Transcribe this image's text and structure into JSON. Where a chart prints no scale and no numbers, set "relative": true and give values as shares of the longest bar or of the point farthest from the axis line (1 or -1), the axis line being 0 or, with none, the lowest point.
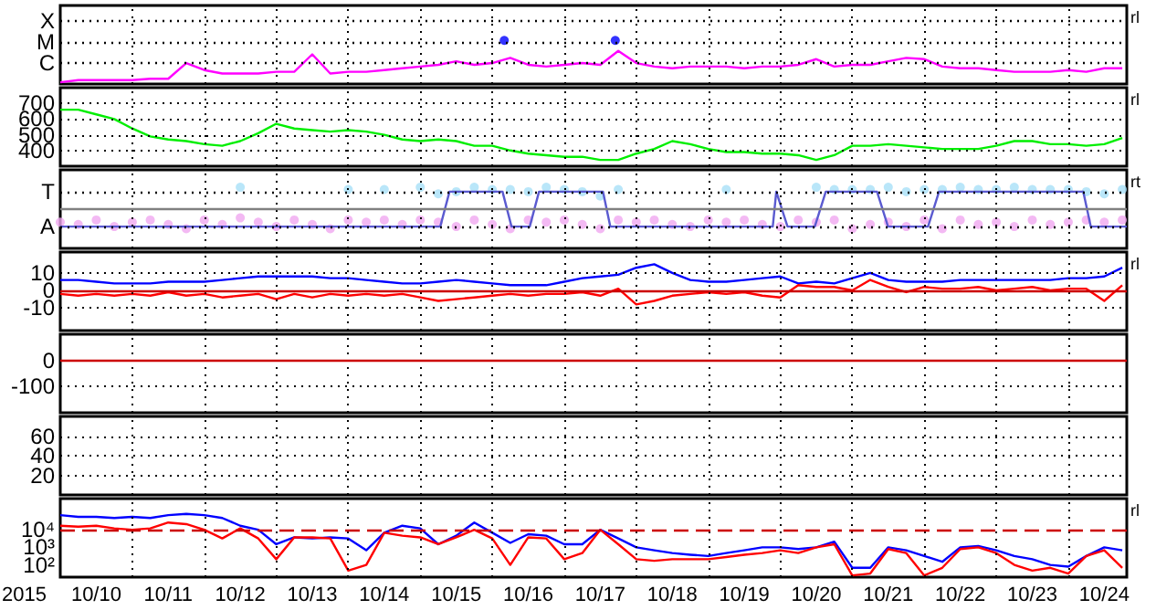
{
  "chart_data": [
    {
      "type": "line",
      "relative": true,
      "ref_lines": [
        {
          "axis": "y",
          "value": 0.48,
          "label": "C",
          "color": "#000000",
          "line_style": "dotted"
        },
        {
          "axis": "y",
          "value": 0.96,
          "label": "M",
          "color": "#000000",
          "line_style": "dotted"
        },
        {
          "axis": "y",
          "value": 1.44,
          "label": "X",
          "color": "#000000",
          "line_style": "dotted"
        }
      ],
      "xlim": [
        "2015-10-10T00:00",
        "2015-10-24T19:30"
      ],
      "xticks": [
        {
          "value": "2015-10-11",
          "label": null
        },
        {
          "value": "2015-10-12",
          "label": null
        },
        {
          "value": "2015-10-13",
          "label": null
        },
        {
          "value": "2015-10-14",
          "label": null
        },
        {
          "value": "2015-10-15",
          "label": null
        },
        {
          "value": "2015-10-16",
          "label": null
        },
        {
          "value": "2015-10-17",
          "label": null
        },
        {
          "value": "2015-10-18",
          "label": null
        },
        {
          "value": "2015-10-19",
          "label": null
        },
        {
          "value": "2015-10-20",
          "label": null
        },
        {
          "value": "2015-10-21",
          "label": null
        },
        {
          "value": "2015-10-22",
          "label": null
        },
        {
          "value": "2015-10-23",
          "label": null
        },
        {
          "value": "2015-10-24",
          "label": null
        }
      ],
      "tick_labels": "y",
      "grid": true,
      "annotations": [
        "rl"
      ],
      "x": [
        "2015-10-10T00:00",
        "2015-10-10T06:00",
        "2015-10-10T12:00",
        "2015-10-10T18:00",
        "2015-10-11T00:00",
        "2015-10-11T06:00",
        "2015-10-11T12:00",
        "2015-10-11T18:00",
        "2015-10-12T00:00",
        "2015-10-12T06:00",
        "2015-10-12T12:00",
        "2015-10-12T18:00",
        "2015-10-13T00:00",
        "2015-10-13T06:00",
        "2015-10-13T12:00",
        "2015-10-13T18:00",
        "2015-10-14T00:00",
        "2015-10-14T06:00",
        "2015-10-14T12:00",
        "2015-10-14T18:00",
        "2015-10-15T00:00",
        "2015-10-15T06:00",
        "2015-10-15T12:00",
        "2015-10-15T18:00",
        "2015-10-16T00:00",
        "2015-10-16T06:00",
        "2015-10-16T12:00",
        "2015-10-16T18:00",
        "2015-10-17T00:00",
        "2015-10-17T06:00",
        "2015-10-17T12:00",
        "2015-10-17T18:00",
        "2015-10-18T00:00",
        "2015-10-18T06:00",
        "2015-10-18T12:00",
        "2015-10-18T18:00",
        "2015-10-19T00:00",
        "2015-10-19T06:00",
        "2015-10-19T12:00",
        "2015-10-19T18:00",
        "2015-10-20T00:00",
        "2015-10-20T06:00",
        "2015-10-20T12:00",
        "2015-10-20T18:00",
        "2015-10-21T00:00",
        "2015-10-21T06:00",
        "2015-10-21T12:00",
        "2015-10-21T18:00",
        "2015-10-22T00:00",
        "2015-10-22T06:00",
        "2015-10-22T12:00",
        "2015-10-22T18:00",
        "2015-10-23T00:00",
        "2015-10-23T06:00",
        "2015-10-23T12:00",
        "2015-10-23T18:00",
        "2015-10-24T00:00",
        "2015-10-24T06:00",
        "2015-10-24T12:00",
        "2015-10-24T18:00"
      ],
      "series": [
        {
          "color": "#ff00ff",
          "values": [
            0.04,
            0.09,
            0.09,
            0.09,
            0.09,
            0.12,
            0.12,
            0.48,
            0.32,
            0.24,
            0.24,
            0.24,
            0.28,
            0.28,
            0.68,
            0.24,
            0.28,
            0.28,
            0.32,
            0.36,
            0.4,
            0.44,
            0.52,
            0.44,
            0.48,
            0.6,
            0.44,
            0.4,
            0.44,
            0.48,
            0.44,
            0.76,
            0.48,
            0.4,
            0.36,
            0.4,
            0.4,
            0.4,
            0.36,
            0.4,
            0.4,
            0.44,
            0.57,
            0.4,
            0.44,
            0.44,
            0.52,
            0.6,
            0.57,
            0.4,
            0.36,
            0.36,
            0.32,
            0.28,
            0.28,
            0.28,
            0.32,
            0.28,
            0.36,
            0.36
          ]
        },
        {
          "type": "scatter",
          "color": "#0000ff",
          "x": [
            "2015-10-16T04:00",
            "2015-10-17T17:00"
          ],
          "values": [
            1,
            1
          ]
        }
      ]
    },
    {
      "type": "line",
      "ylim": [
        300,
        800
      ],
      "yticks": [
        400,
        500,
        600,
        700
      ],
      "xlim": [
        "2015-10-10T00:00",
        "2015-10-24T19:30"
      ],
      "xticks": [
        {
          "value": "2015-10-11",
          "label": null
        },
        {
          "value": "2015-10-12",
          "label": null
        },
        {
          "value": "2015-10-13",
          "label": null
        },
        {
          "value": "2015-10-14",
          "label": null
        },
        {
          "value": "2015-10-15",
          "label": null
        },
        {
          "value": "2015-10-16",
          "label": null
        },
        {
          "value": "2015-10-17",
          "label": null
        },
        {
          "value": "2015-10-18",
          "label": null
        },
        {
          "value": "2015-10-19",
          "label": null
        },
        {
          "value": "2015-10-20",
          "label": null
        },
        {
          "value": "2015-10-21",
          "label": null
        },
        {
          "value": "2015-10-22",
          "label": null
        },
        {
          "value": "2015-10-23",
          "label": null
        },
        {
          "value": "2015-10-24",
          "label": null
        }
      ],
      "tick_labels": "y",
      "grid": true,
      "annotations": [
        "rl"
      ],
      "x": [
        "2015-10-10T00:00",
        "2015-10-10T06:00",
        "2015-10-10T12:00",
        "2015-10-10T18:00",
        "2015-10-11T00:00",
        "2015-10-11T06:00",
        "2015-10-11T12:00",
        "2015-10-11T18:00",
        "2015-10-12T00:00",
        "2015-10-12T06:00",
        "2015-10-12T12:00",
        "2015-10-12T18:00",
        "2015-10-13T00:00",
        "2015-10-13T06:00",
        "2015-10-13T12:00",
        "2015-10-13T18:00",
        "2015-10-14T00:00",
        "2015-10-14T06:00",
        "2015-10-14T12:00",
        "2015-10-14T18:00",
        "2015-10-15T00:00",
        "2015-10-15T06:00",
        "2015-10-15T12:00",
        "2015-10-15T18:00",
        "2015-10-16T00:00",
        "2015-10-16T06:00",
        "2015-10-16T12:00",
        "2015-10-16T18:00",
        "2015-10-17T00:00",
        "2015-10-17T06:00",
        "2015-10-17T12:00",
        "2015-10-17T18:00",
        "2015-10-18T00:00",
        "2015-10-18T06:00",
        "2015-10-18T12:00",
        "2015-10-18T18:00",
        "2015-10-19T00:00",
        "2015-10-19T06:00",
        "2015-10-19T12:00",
        "2015-10-19T18:00",
        "2015-10-20T00:00",
        "2015-10-20T06:00",
        "2015-10-20T12:00",
        "2015-10-20T18:00",
        "2015-10-21T00:00",
        "2015-10-21T06:00",
        "2015-10-21T12:00",
        "2015-10-21T18:00",
        "2015-10-22T00:00",
        "2015-10-22T06:00",
        "2015-10-22T12:00",
        "2015-10-22T18:00",
        "2015-10-23T00:00",
        "2015-10-23T06:00",
        "2015-10-23T12:00",
        "2015-10-23T18:00",
        "2015-10-24T00:00",
        "2015-10-24T06:00",
        "2015-10-24T12:00",
        "2015-10-24T18:00"
      ],
      "series": [
        {
          "color": "#00ee00",
          "values": [
            660,
            660,
            630,
            600,
            540,
            490,
            470,
            460,
            440,
            430,
            460,
            510,
            570,
            540,
            530,
            520,
            530,
            520,
            500,
            470,
            460,
            470,
            460,
            430,
            430,
            400,
            380,
            370,
            360,
            360,
            340,
            340,
            380,
            410,
            460,
            440,
            410,
            390,
            390,
            380,
            380,
            370,
            340,
            370,
            430,
            430,
            440,
            430,
            420,
            410,
            410,
            410,
            430,
            460,
            460,
            440,
            440,
            430,
            440,
            480
          ]
        }
      ]
    },
    {
      "type": "line",
      "relative": true,
      "xlim": [
        "2015-10-10T00:00",
        "2015-10-24T19:30"
      ],
      "xticks": [
        {
          "value": "2015-10-11",
          "label": null
        },
        {
          "value": "2015-10-12",
          "label": null
        },
        {
          "value": "2015-10-13",
          "label": null
        },
        {
          "value": "2015-10-14",
          "label": null
        },
        {
          "value": "2015-10-15",
          "label": null
        },
        {
          "value": "2015-10-16",
          "label": null
        },
        {
          "value": "2015-10-17",
          "label": null
        },
        {
          "value": "2015-10-18",
          "label": null
        },
        {
          "value": "2015-10-19",
          "label": null
        },
        {
          "value": "2015-10-20",
          "label": null
        },
        {
          "value": "2015-10-21",
          "label": null
        },
        {
          "value": "2015-10-22",
          "label": null
        },
        {
          "value": "2015-10-23",
          "label": null
        },
        {
          "value": "2015-10-24",
          "label": null
        }
      ],
      "tick_labels": "y",
      "grid": true,
      "annotations": [
        "rt"
      ],
      "ref_lines": [
        {
          "axis": "y",
          "value": 0,
          "color": "#808080"
        },
        {
          "axis": "y",
          "value": 0.8,
          "label": "T",
          "color": "#000000",
          "line_style": "dotted"
        },
        {
          "axis": "y",
          "value": -0.8,
          "label": "A",
          "color": "#000000",
          "line_style": "dotted"
        }
      ],
      "x": [
        "2015-10-10T00:00",
        "2015-10-10T06:00",
        "2015-10-10T12:00",
        "2015-10-10T18:00",
        "2015-10-11T00:00",
        "2015-10-11T06:00",
        "2015-10-11T12:00",
        "2015-10-11T18:00",
        "2015-10-12T00:00",
        "2015-10-12T06:00",
        "2015-10-12T12:00",
        "2015-10-12T18:00",
        "2015-10-13T00:00",
        "2015-10-13T06:00",
        "2015-10-13T12:00",
        "2015-10-13T18:00",
        "2015-10-14T00:00",
        "2015-10-14T06:00",
        "2015-10-14T12:00",
        "2015-10-14T18:00",
        "2015-10-15T00:00",
        "2015-10-15T06:00",
        "2015-10-15T12:00",
        "2015-10-15T18:00",
        "2015-10-16T00:00",
        "2015-10-16T06:00",
        "2015-10-16T12:00",
        "2015-10-16T18:00",
        "2015-10-17T00:00",
        "2015-10-17T06:00",
        "2015-10-17T12:00",
        "2015-10-17T18:00",
        "2015-10-18T00:00",
        "2015-10-18T06:00",
        "2015-10-18T12:00",
        "2015-10-18T18:00",
        "2015-10-19T00:00",
        "2015-10-19T06:00",
        "2015-10-19T12:00",
        "2015-10-19T18:00",
        "2015-10-20T00:00",
        "2015-10-20T06:00",
        "2015-10-20T12:00",
        "2015-10-20T18:00",
        "2015-10-21T00:00",
        "2015-10-21T06:00",
        "2015-10-21T12:00",
        "2015-10-21T18:00",
        "2015-10-22T00:00",
        "2015-10-22T06:00",
        "2015-10-22T12:00",
        "2015-10-22T18:00",
        "2015-10-23T00:00",
        "2015-10-23T06:00",
        "2015-10-23T12:00",
        "2015-10-23T18:00",
        "2015-10-24T00:00",
        "2015-10-24T06:00",
        "2015-10-24T12:00",
        "2015-10-24T18:00"
      ],
      "series": [
        {
          "type": "scatter",
          "color": "#f0a8f0",
          "values": [
            -0.6,
            -0.7,
            -0.5,
            -0.8,
            -0.6,
            -0.5,
            -0.7,
            -0.9,
            -0.5,
            -0.7,
            -0.4,
            -0.6,
            -0.8,
            -0.5,
            -0.7,
            -0.9,
            -0.5,
            -0.6,
            -0.5,
            -0.7,
            -0.5,
            -0.6,
            -0.8,
            -0.5,
            -0.7,
            -0.9,
            -0.5,
            -0.6,
            -0.5,
            -0.7,
            -0.9,
            -0.5,
            -0.6,
            -0.5,
            -0.7,
            -0.8,
            -0.5,
            -0.6,
            -0.5,
            -0.7,
            -0.8,
            -0.5,
            -0.6,
            -0.5,
            -0.9,
            -0.7,
            -0.6,
            -0.8,
            -0.5,
            -0.9,
            -0.5,
            -0.7,
            -0.6,
            -0.8,
            -0.5,
            -0.7,
            -0.6,
            -0.5,
            -0.6,
            -0.5
          ]
        },
        {
          "type": "scatter",
          "color": "#a8e0f8",
          "values": [
            null,
            null,
            null,
            null,
            null,
            null,
            null,
            null,
            null,
            null,
            1,
            null,
            null,
            null,
            null,
            null,
            0.9,
            null,
            0.9,
            null,
            1,
            0.7,
            0.8,
            1,
            0.9,
            0.9,
            0.8,
            1,
            0.9,
            0.8,
            0.6,
            0.9,
            null,
            null,
            null,
            null,
            null,
            0.9,
            null,
            null,
            null,
            null,
            1,
            0.9,
            0.9,
            0.9,
            1,
            0.8,
            0.9,
            0.9,
            1,
            0.9,
            0.9,
            1,
            0.9,
            0.9,
            0.9,
            0.8,
            0.7,
            0.9
          ]
        },
        {
          "color": "#5a5ad0",
          "x": [
            "2015-10-10T00:00",
            "2015-10-15T06:40",
            "2015-10-15T09:45",
            "2015-10-16T03:25",
            "2015-10-16T06:25",
            "2015-10-16T12:30",
            "2015-10-16T15:35",
            "2015-10-17T12:55",
            "2015-10-17T15:20",
            "2015-10-19T21:30",
            "2015-10-19T22:40",
            "2015-10-20T02:25",
            "2015-10-20T11:30",
            "2015-10-20T15:10",
            "2015-10-21T08:15",
            "2015-10-21T11:55",
            "2015-10-22T01:15",
            "2015-10-22T04:55",
            "2015-10-24T05:00",
            "2015-10-24T07:30",
            "2015-10-24T19:30"
          ],
          "values": [
            -0.8,
            -0.8,
            0.8,
            0.8,
            -0.8,
            -0.8,
            0.8,
            0.8,
            -0.8,
            -0.8,
            0.8,
            -0.8,
            -0.8,
            0.8,
            0.8,
            -0.8,
            -0.8,
            0.8,
            0.8,
            -0.8,
            -0.8
          ]
        }
      ]
    },
    {
      "type": "line",
      "ylim": [
        -23,
        22
      ],
      "yticks": [
        10,
        0,
        -10
      ],
      "xlim": [
        "2015-10-10T00:00",
        "2015-10-24T19:30"
      ],
      "xticks": [
        {
          "value": "2015-10-11",
          "label": null
        },
        {
          "value": "2015-10-12",
          "label": null
        },
        {
          "value": "2015-10-13",
          "label": null
        },
        {
          "value": "2015-10-14",
          "label": null
        },
        {
          "value": "2015-10-15",
          "label": null
        },
        {
          "value": "2015-10-16",
          "label": null
        },
        {
          "value": "2015-10-17",
          "label": null
        },
        {
          "value": "2015-10-18",
          "label": null
        },
        {
          "value": "2015-10-19",
          "label": null
        },
        {
          "value": "2015-10-20",
          "label": null
        },
        {
          "value": "2015-10-21",
          "label": null
        },
        {
          "value": "2015-10-22",
          "label": null
        },
        {
          "value": "2015-10-23",
          "label": null
        },
        {
          "value": "2015-10-24",
          "label": null
        }
      ],
      "tick_labels": "y",
      "grid": true,
      "annotations": [
        "rl"
      ],
      "ref_lines": [
        {
          "axis": "y",
          "value": 0,
          "color": "#cc0000"
        }
      ],
      "x": [
        "2015-10-10T00:00",
        "2015-10-10T06:00",
        "2015-10-10T12:00",
        "2015-10-10T18:00",
        "2015-10-11T00:00",
        "2015-10-11T06:00",
        "2015-10-11T12:00",
        "2015-10-11T18:00",
        "2015-10-12T00:00",
        "2015-10-12T06:00",
        "2015-10-12T12:00",
        "2015-10-12T18:00",
        "2015-10-13T00:00",
        "2015-10-13T06:00",
        "2015-10-13T12:00",
        "2015-10-13T18:00",
        "2015-10-14T00:00",
        "2015-10-14T06:00",
        "2015-10-14T12:00",
        "2015-10-14T18:00",
        "2015-10-15T00:00",
        "2015-10-15T06:00",
        "2015-10-15T12:00",
        "2015-10-15T18:00",
        "2015-10-16T00:00",
        "2015-10-16T06:00",
        "2015-10-16T12:00",
        "2015-10-16T18:00",
        "2015-10-17T00:00",
        "2015-10-17T06:00",
        "2015-10-17T12:00",
        "2015-10-17T18:00",
        "2015-10-18T00:00",
        "2015-10-18T06:00",
        "2015-10-18T12:00",
        "2015-10-18T18:00",
        "2015-10-19T00:00",
        "2015-10-19T06:00",
        "2015-10-19T12:00",
        "2015-10-19T18:00",
        "2015-10-20T00:00",
        "2015-10-20T06:00",
        "2015-10-20T12:00",
        "2015-10-20T18:00",
        "2015-10-21T00:00",
        "2015-10-21T06:00",
        "2015-10-21T12:00",
        "2015-10-21T18:00",
        "2015-10-22T00:00",
        "2015-10-22T06:00",
        "2015-10-22T12:00",
        "2015-10-22T18:00",
        "2015-10-23T00:00",
        "2015-10-23T06:00",
        "2015-10-23T12:00",
        "2015-10-23T18:00",
        "2015-10-24T00:00",
        "2015-10-24T06:00",
        "2015-10-24T12:00",
        "2015-10-24T18:00"
      ],
      "series": [
        {
          "color": "#0000ff",
          "values": [
            6,
            6,
            5,
            4,
            4,
            4,
            5,
            5,
            5,
            6,
            7,
            8,
            8,
            8,
            8,
            7,
            7,
            6,
            5,
            4,
            4,
            5,
            6,
            5,
            4,
            3,
            3,
            3,
            5,
            7,
            8,
            9,
            13,
            15,
            10,
            6,
            5,
            5,
            6,
            7,
            8,
            4,
            5,
            4,
            7,
            10,
            6,
            5,
            5,
            5,
            6,
            6,
            6,
            6,
            6,
            6,
            7,
            7,
            8,
            13
          ]
        },
        {
          "color": "#ff0000",
          "values": [
            -2,
            -3,
            -2,
            -3,
            -2,
            -3,
            -1,
            -3,
            -2,
            -4,
            -3,
            -2,
            -5,
            -2,
            -4,
            -2,
            -3,
            -2,
            -3,
            -2,
            -4,
            -6,
            -5,
            -4,
            -3,
            -2,
            -3,
            -2,
            -2,
            -1,
            -3,
            1,
            -8,
            -6,
            -3,
            -2,
            -1,
            -2,
            -1,
            -3,
            -4,
            3,
            2,
            2,
            0,
            6,
            2,
            -1,
            2,
            1,
            1,
            2,
            0,
            1,
            2,
            0,
            1,
            1,
            -6,
            3
          ]
        }
      ]
    },
    {
      "type": "line",
      "ylim": [
        -200,
        100
      ],
      "yticks": [
        0,
        -100
      ],
      "xlim": [
        "2015-10-10T00:00",
        "2015-10-24T19:30"
      ],
      "xticks": [
        {
          "value": "2015-10-11",
          "label": null
        },
        {
          "value": "2015-10-12",
          "label": null
        },
        {
          "value": "2015-10-13",
          "label": null
        },
        {
          "value": "2015-10-14",
          "label": null
        },
        {
          "value": "2015-10-15",
          "label": null
        },
        {
          "value": "2015-10-16",
          "label": null
        },
        {
          "value": "2015-10-17",
          "label": null
        },
        {
          "value": "2015-10-18",
          "label": null
        },
        {
          "value": "2015-10-19",
          "label": null
        },
        {
          "value": "2015-10-20",
          "label": null
        },
        {
          "value": "2015-10-21",
          "label": null
        },
        {
          "value": "2015-10-22",
          "label": null
        },
        {
          "value": "2015-10-23",
          "label": null
        },
        {
          "value": "2015-10-24",
          "label": null
        }
      ],
      "tick_labels": "y",
      "grid": true,
      "ref_lines": [
        {
          "axis": "y",
          "value": 0,
          "color": "#cc0000"
        }
      ]
    },
    {
      "type": "line",
      "ylim": [
        0,
        80
      ],
      "yticks": [
        60,
        40,
        20
      ],
      "xlim": [
        "2015-10-10T00:00",
        "2015-10-24T19:30"
      ],
      "xticks": [
        {
          "value": "2015-10-11",
          "label": null
        },
        {
          "value": "2015-10-12",
          "label": null
        },
        {
          "value": "2015-10-13",
          "label": null
        },
        {
          "value": "2015-10-14",
          "label": null
        },
        {
          "value": "2015-10-15",
          "label": null
        },
        {
          "value": "2015-10-16",
          "label": null
        },
        {
          "value": "2015-10-17",
          "label": null
        },
        {
          "value": "2015-10-18",
          "label": null
        },
        {
          "value": "2015-10-19",
          "label": null
        },
        {
          "value": "2015-10-20",
          "label": null
        },
        {
          "value": "2015-10-21",
          "label": null
        },
        {
          "value": "2015-10-22",
          "label": null
        },
        {
          "value": "2015-10-23",
          "label": null
        },
        {
          "value": "2015-10-24",
          "label": null
        }
      ],
      "tick_labels": "y",
      "grid": true
    },
    {
      "type": "line",
      "log": "y",
      "ylim": [
        20,
        600000
      ],
      "yticks": [
        {
          "value": 10000,
          "label": "10⁴"
        },
        {
          "value": 1000,
          "label": "10³"
        },
        {
          "value": 100,
          "label": "10²"
        }
      ],
      "xlim": [
        "2015-10-10T00:00",
        "2015-10-24T19:30"
      ],
      "xticks": [
        {
          "value": "2015-10-11",
          "label": null
        },
        {
          "value": "2015-10-12",
          "label": null
        },
        {
          "value": "2015-10-13",
          "label": null
        },
        {
          "value": "2015-10-14",
          "label": null
        },
        {
          "value": "2015-10-15",
          "label": null
        },
        {
          "value": "2015-10-16",
          "label": null
        },
        {
          "value": "2015-10-17",
          "label": null
        },
        {
          "value": "2015-10-18",
          "label": null
        },
        {
          "value": "2015-10-19",
          "label": null
        },
        {
          "value": "2015-10-20",
          "label": null
        },
        {
          "value": "2015-10-21",
          "label": null
        },
        {
          "value": "2015-10-22",
          "label": null
        },
        {
          "value": "2015-10-23",
          "label": null
        },
        {
          "value": "2015-10-24",
          "label": null
        },
        {
          "value": "2015-10-10T12:00",
          "label": "10/10"
        },
        {
          "value": "2015-10-11T12:00",
          "label": "10/11"
        },
        {
          "value": "2015-10-12T12:00",
          "label": "10/12"
        },
        {
          "value": "2015-10-13T12:00",
          "label": "10/13"
        },
        {
          "value": "2015-10-14T12:00",
          "label": "10/14"
        },
        {
          "value": "2015-10-15T12:00",
          "label": "10/15"
        },
        {
          "value": "2015-10-16T12:00",
          "label": "10/16"
        },
        {
          "value": "2015-10-17T12:00",
          "label": "10/17"
        },
        {
          "value": "2015-10-18T12:00",
          "label": "10/18"
        },
        {
          "value": "2015-10-19T12:00",
          "label": "10/19"
        },
        {
          "value": "2015-10-20T12:00",
          "label": "10/20"
        },
        {
          "value": "2015-10-21T12:00",
          "label": "10/21"
        },
        {
          "value": "2015-10-22T12:00",
          "label": "10/22"
        },
        {
          "value": "2015-10-23T12:00",
          "label": "10/23"
        },
        {
          "value": "2015-10-24T12:00",
          "label": "10/24"
        }
      ],
      "grid": "x",
      "xlabel": "2015",
      "annotations": [
        "rl"
      ],
      "ref_lines": [
        {
          "axis": "y",
          "value": 10000,
          "color": "#cc0000",
          "line_style": "dashed"
        }
      ],
      "x": [
        "2015-10-10T00:00",
        "2015-10-10T06:00",
        "2015-10-10T12:00",
        "2015-10-10T18:00",
        "2015-10-11T00:00",
        "2015-10-11T06:00",
        "2015-10-11T12:00",
        "2015-10-11T18:00",
        "2015-10-12T00:00",
        "2015-10-12T06:00",
        "2015-10-12T12:00",
        "2015-10-12T18:00",
        "2015-10-13T00:00",
        "2015-10-13T06:00",
        "2015-10-13T12:00",
        "2015-10-13T18:00",
        "2015-10-14T00:00",
        "2015-10-14T06:00",
        "2015-10-14T12:00",
        "2015-10-14T18:00",
        "2015-10-15T00:00",
        "2015-10-15T06:00",
        "2015-10-15T12:00",
        "2015-10-15T18:00",
        "2015-10-16T00:00",
        "2015-10-16T06:00",
        "2015-10-16T12:00",
        "2015-10-16T18:00",
        "2015-10-17T00:00",
        "2015-10-17T06:00",
        "2015-10-17T12:00",
        "2015-10-17T18:00",
        "2015-10-18T00:00",
        "2015-10-18T06:00",
        "2015-10-18T12:00",
        "2015-10-18T18:00",
        "2015-10-19T00:00",
        "2015-10-19T06:00",
        "2015-10-19T12:00",
        "2015-10-19T18:00",
        "2015-10-20T00:00",
        "2015-10-20T06:00",
        "2015-10-20T12:00",
        "2015-10-20T18:00",
        "2015-10-21T00:00",
        "2015-10-21T06:00",
        "2015-10-21T12:00",
        "2015-10-21T18:00",
        "2015-10-22T00:00",
        "2015-10-22T06:00",
        "2015-10-22T12:00",
        "2015-10-22T18:00",
        "2015-10-23T00:00",
        "2015-10-23T06:00",
        "2015-10-23T12:00",
        "2015-10-23T18:00",
        "2015-10-24T00:00",
        "2015-10-24T06:00",
        "2015-10-24T12:00",
        "2015-10-24T18:00"
      ],
      "series": [
        {
          "color": "#0000ff",
          "values": [
            68000,
            55000,
            55000,
            47000,
            55000,
            47000,
            68000,
            80000,
            68000,
            47000,
            17000,
            10000,
            1500,
            3700,
            3200,
            3700,
            3200,
            680,
            6800,
            17000,
            12000,
            1500,
            4600,
            26000,
            6800,
            1800,
            5600,
            4600,
            1500,
            1500,
            10000,
            3200,
            1000,
            680,
            470,
            380,
            320,
            470,
            680,
            1000,
            1000,
            800,
            1000,
            2100,
            68,
            68,
            1000,
            680,
            320,
            150,
            1000,
            1200,
            680,
            320,
            210,
            100,
            80,
            320,
            1000,
            680
          ]
        },
        {
          "color": "#ff0000",
          "values": [
            17000,
            15000,
            17000,
            12000,
            10000,
            12000,
            26000,
            21000,
            10000,
            3200,
            12000,
            3200,
            210,
            3700,
            3700,
            3200,
            47,
            100,
            6800,
            4600,
            3700,
            1500,
            3700,
            10000,
            3200,
            100,
            3700,
            3200,
            210,
            470,
            10000,
            1500,
            210,
            170,
            210,
            210,
            210,
            280,
            380,
            470,
            680,
            470,
            1000,
            1500,
            25,
            32,
            800,
            470,
            25,
            68,
            800,
            1000,
            470,
            100,
            47,
            68,
            32,
            320,
            680,
            68
          ]
        }
      ]
    }
  ]
}
